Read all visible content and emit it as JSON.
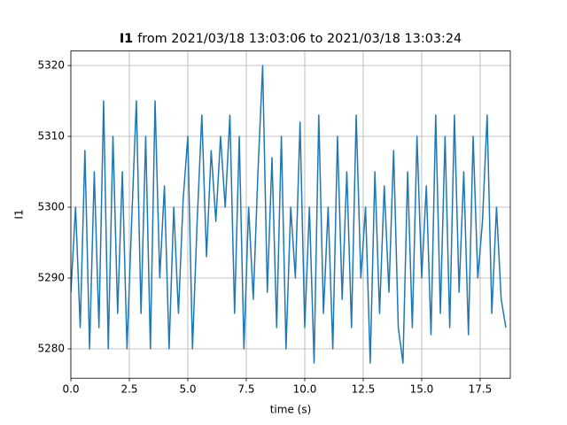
{
  "chart_data": {
    "type": "line",
    "title_signal": "I1",
    "title": "from 2021/03/18 13:03:06 to 2021/03/18 13:03:24",
    "xlabel": "time (s)",
    "ylabel": "I1",
    "color": "#1f77b4",
    "grid": true,
    "xlim": [
      0,
      18.79
    ],
    "ylim": [
      5275.85,
      5322.05
    ],
    "xticks": [
      {
        "value": 0,
        "label": "0.0"
      },
      2.5,
      {
        "value": 5,
        "label": "5.0"
      },
      7.5,
      {
        "value": 10,
        "label": "10.0"
      },
      12.5,
      {
        "value": 15,
        "label": "15.0"
      },
      17.5
    ],
    "yticks": [
      5280,
      5290,
      5300,
      5310,
      5320
    ],
    "x": [
      0,
      0.2,
      0.4,
      0.6,
      0.8,
      1.0,
      1.2,
      1.4,
      1.6,
      1.8,
      2.0,
      2.2,
      2.4,
      2.6,
      2.8,
      3.0,
      3.2,
      3.4,
      3.6,
      3.8,
      4.0,
      4.2,
      4.4,
      4.6,
      4.8,
      5.0,
      5.2,
      5.4,
      5.6,
      5.8,
      6.0,
      6.2,
      6.4,
      6.6,
      6.8,
      7.0,
      7.2,
      7.4,
      7.6,
      7.8,
      8.0,
      8.2,
      8.4,
      8.6,
      8.8,
      9.0,
      9.2,
      9.4,
      9.6,
      9.8,
      10.0,
      10.2,
      10.4,
      10.6,
      10.8,
      11.0,
      11.2,
      11.4,
      11.6,
      11.8,
      12.0,
      12.2,
      12.4,
      12.6,
      12.8,
      13.0,
      13.2,
      13.4,
      13.6,
      13.8,
      14.0,
      14.2,
      14.4,
      14.6,
      14.8,
      15.0,
      15.2,
      15.4,
      15.6,
      15.8,
      16.0,
      16.2,
      16.4,
      16.6,
      16.8,
      17.0,
      17.2,
      17.4,
      17.6,
      17.8,
      18.0,
      18.2,
      18.4,
      18.6
    ],
    "values": [
      5288,
      5300,
      5283,
      5308,
      5280,
      5305,
      5283,
      5315,
      5280,
      5310,
      5285,
      5305,
      5280,
      5298,
      5315,
      5285,
      5310,
      5280,
      5315,
      5290,
      5303,
      5280,
      5300,
      5285,
      5301,
      5310,
      5280,
      5298,
      5313,
      5293,
      5308,
      5298,
      5310,
      5300,
      5313,
      5285,
      5310,
      5280,
      5300,
      5287,
      5305,
      5320,
      5288,
      5307,
      5283,
      5310,
      5280,
      5300,
      5290,
      5312,
      5283,
      5300,
      5278,
      5313,
      5285,
      5300,
      5280,
      5310,
      5287,
      5305,
      5283,
      5313,
      5290,
      5300,
      5278,
      5305,
      5285,
      5303,
      5288,
      5308,
      5283,
      5278,
      5305,
      5283,
      5310,
      5290,
      5303,
      5282,
      5313,
      5285,
      5310,
      5283,
      5313,
      5288,
      5305,
      5282,
      5310,
      5290,
      5298,
      5313,
      5285,
      5300,
      5287,
      5283
    ]
  }
}
